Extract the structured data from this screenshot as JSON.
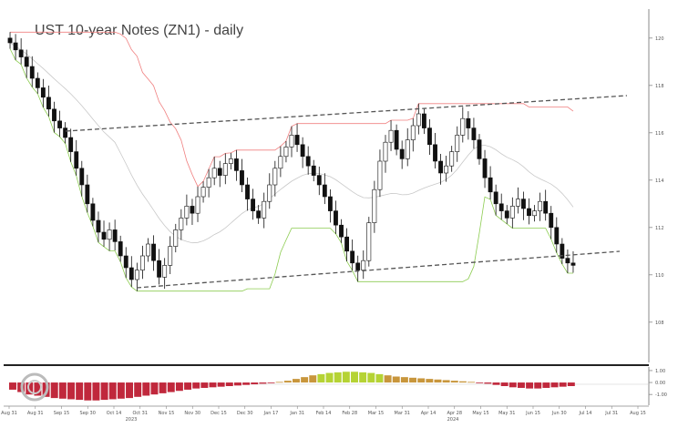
{
  "chart_data": {
    "type": "candlestick",
    "title": "UST 10-year Notes (ZN1) - daily",
    "y_axis": {
      "ticks": [
        "120",
        "118",
        "116",
        "114",
        "112",
        "110",
        "108"
      ],
      "ylim": [
        106.3,
        121.3
      ]
    },
    "x_axis": {
      "ticks": [
        "Aug 31",
        "Aug 31",
        "Sep 15",
        "Sep 30",
        "Oct 14",
        "Oct 31",
        "Nov 15",
        "Nov 30",
        "Dec 15",
        "Dec 30",
        "Jan 17",
        "Jan 31",
        "Feb 14",
        "Feb 28",
        "Mar 15",
        "Mar 31",
        "Apr 14",
        "Apr 28",
        "May 15",
        "May 31",
        "Jun 15",
        "Jun 30",
        "Jul 14",
        "Jul 31",
        "Aug 15"
      ],
      "year_labels": [
        "2023",
        "2024"
      ]
    },
    "closes": [
      119.8,
      119.5,
      119.2,
      118.8,
      118.3,
      117.9,
      117.5,
      117.0,
      116.5,
      116.2,
      115.8,
      115.2,
      114.5,
      113.8,
      113.0,
      112.3,
      111.8,
      111.5,
      111.9,
      111.4,
      110.8,
      110.3,
      109.8,
      110.2,
      110.8,
      111.3,
      110.6,
      109.9,
      110.4,
      111.2,
      111.9,
      112.4,
      112.9,
      112.6,
      113.3,
      113.7,
      114.1,
      114.5,
      114.2,
      114.7,
      114.9,
      114.4,
      113.8,
      113.2,
      112.7,
      112.4,
      113.1,
      113.8,
      114.5,
      115.0,
      115.4,
      115.9,
      115.5,
      115.0,
      114.6,
      114.2,
      113.8,
      113.3,
      112.7,
      112.1,
      111.6,
      111.0,
      110.5,
      110.2,
      110.6,
      112.2,
      113.6,
      114.8,
      115.6,
      116.1,
      115.3,
      114.9,
      115.7,
      116.3,
      116.8,
      116.2,
      115.5,
      114.8,
      114.3,
      114.6,
      115.2,
      115.9,
      116.6,
      116.2,
      115.7,
      114.9,
      114.1,
      113.5,
      113.0,
      112.7,
      112.4,
      112.9,
      113.2,
      112.8,
      112.5,
      112.7,
      113.1,
      112.6,
      112.0,
      111.3,
      110.7,
      110.5,
      110.4
    ],
    "indicator": {
      "ticks": [
        "1.00",
        "0.00",
        "-1.00"
      ],
      "ylim": [
        -1.9,
        1.3
      ],
      "values": [
        -0.6,
        -0.8,
        -1.0,
        -1.1,
        -1.2,
        -1.3,
        -1.35,
        -1.4,
        -1.45,
        -1.5,
        -1.5,
        -1.45,
        -1.4,
        -1.35,
        -1.3,
        -1.2,
        -1.1,
        -1.0,
        -0.9,
        -0.8,
        -0.7,
        -0.6,
        -0.5,
        -0.45,
        -0.4,
        -0.35,
        -0.3,
        -0.25,
        -0.2,
        -0.15,
        -0.1,
        -0.05,
        0.05,
        0.15,
        0.3,
        0.45,
        0.6,
        0.7,
        0.8,
        0.85,
        0.9,
        0.9,
        0.85,
        0.8,
        0.7,
        0.6,
        0.5,
        0.45,
        0.4,
        0.35,
        0.3,
        0.25,
        0.2,
        0.15,
        0.1,
        0.05,
        -0.05,
        -0.1,
        -0.2,
        -0.3,
        -0.4,
        -0.45,
        -0.5,
        -0.5,
        -0.45,
        -0.4,
        -0.35,
        -0.3
      ]
    }
  }
}
